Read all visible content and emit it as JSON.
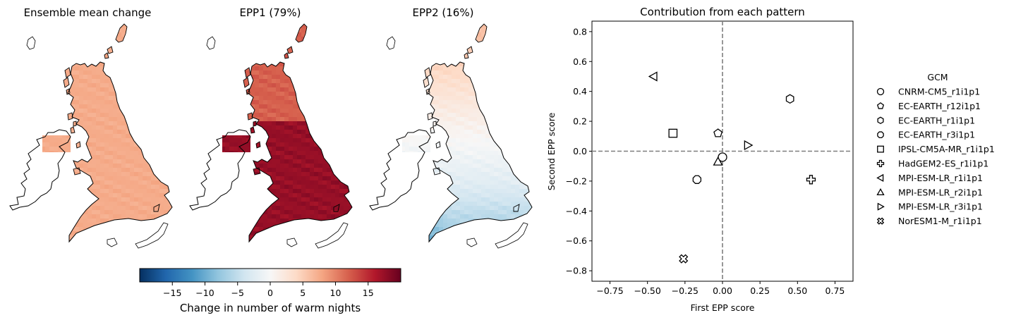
{
  "maps": [
    {
      "title": "Ensemble mean change",
      "kind": "mean"
    },
    {
      "title": "EPP1 (79%)",
      "kind": "epp1"
    },
    {
      "title": "EPP2 (16%)",
      "kind": "epp2"
    }
  ],
  "colorbar": {
    "label": "Change in number of warm nights",
    "ticks": [
      -15,
      -10,
      -5,
      0,
      5,
      10,
      15
    ],
    "range": [
      -20,
      20
    ],
    "colormap": "RdBu_r",
    "colors": [
      "#053061",
      "#2166ac",
      "#4393c3",
      "#92c5de",
      "#d1e5f0",
      "#f7f7f7",
      "#fddbc7",
      "#f4a582",
      "#d6604d",
      "#b2182b",
      "#67001f"
    ]
  },
  "chart_data": {
    "type": "scatter",
    "title": "Contribution from each pattern",
    "xlabel": "First EPP score",
    "ylabel": "Second EPP score",
    "xlim": [
      -0.87,
      0.87
    ],
    "ylim": [
      -0.87,
      0.87
    ],
    "xticks": [
      -0.75,
      -0.5,
      -0.25,
      0.0,
      0.25,
      0.5,
      0.75
    ],
    "xtick_labels": [
      "−0.75",
      "−0.50",
      "−0.25",
      "0.00",
      "0.25",
      "0.50",
      "0.75"
    ],
    "yticks": [
      -0.8,
      -0.6,
      -0.4,
      -0.2,
      0.0,
      0.2,
      0.4,
      0.6,
      0.8
    ],
    "ytick_labels": [
      "−0.8",
      "−0.6",
      "−0.4",
      "−0.2",
      "0.0",
      "0.2",
      "0.4",
      "0.6",
      "0.8"
    ],
    "reference_lines": {
      "x": 0,
      "y": 0
    },
    "legend": {
      "title": "GCM",
      "placement": "right",
      "entries": [
        {
          "name": "CNRM-CM5_r1i1p1",
          "marker": "circle",
          "x": 0.0,
          "y": -0.04
        },
        {
          "name": "EC-EARTH_r12i1p1",
          "marker": "pentagon",
          "x": -0.03,
          "y": 0.12
        },
        {
          "name": "EC-EARTH_r1i1p1",
          "marker": "hexagon",
          "x": 0.45,
          "y": 0.35
        },
        {
          "name": "EC-EARTH_r3i1p1",
          "marker": "octagon",
          "x": -0.17,
          "y": -0.19
        },
        {
          "name": "IPSL-CM5A-MR_r1i1p1",
          "marker": "square",
          "x": -0.33,
          "y": 0.12
        },
        {
          "name": "HadGEM2-ES_r1i1p1",
          "marker": "plus",
          "x": 0.59,
          "y": -0.19
        },
        {
          "name": "MPI-ESM-LR_r1i1p1",
          "marker": "triangle-left",
          "x": -0.46,
          "y": 0.5
        },
        {
          "name": "MPI-ESM-LR_r2i1p1",
          "marker": "triangle-up",
          "x": -0.03,
          "y": -0.07
        },
        {
          "name": "MPI-ESM-LR_r3i1p1",
          "marker": "triangle-right",
          "x": 0.17,
          "y": 0.04
        },
        {
          "name": "NorESM1-M_r1i1p1",
          "marker": "x-filled",
          "x": -0.26,
          "y": -0.72
        }
      ]
    }
  }
}
